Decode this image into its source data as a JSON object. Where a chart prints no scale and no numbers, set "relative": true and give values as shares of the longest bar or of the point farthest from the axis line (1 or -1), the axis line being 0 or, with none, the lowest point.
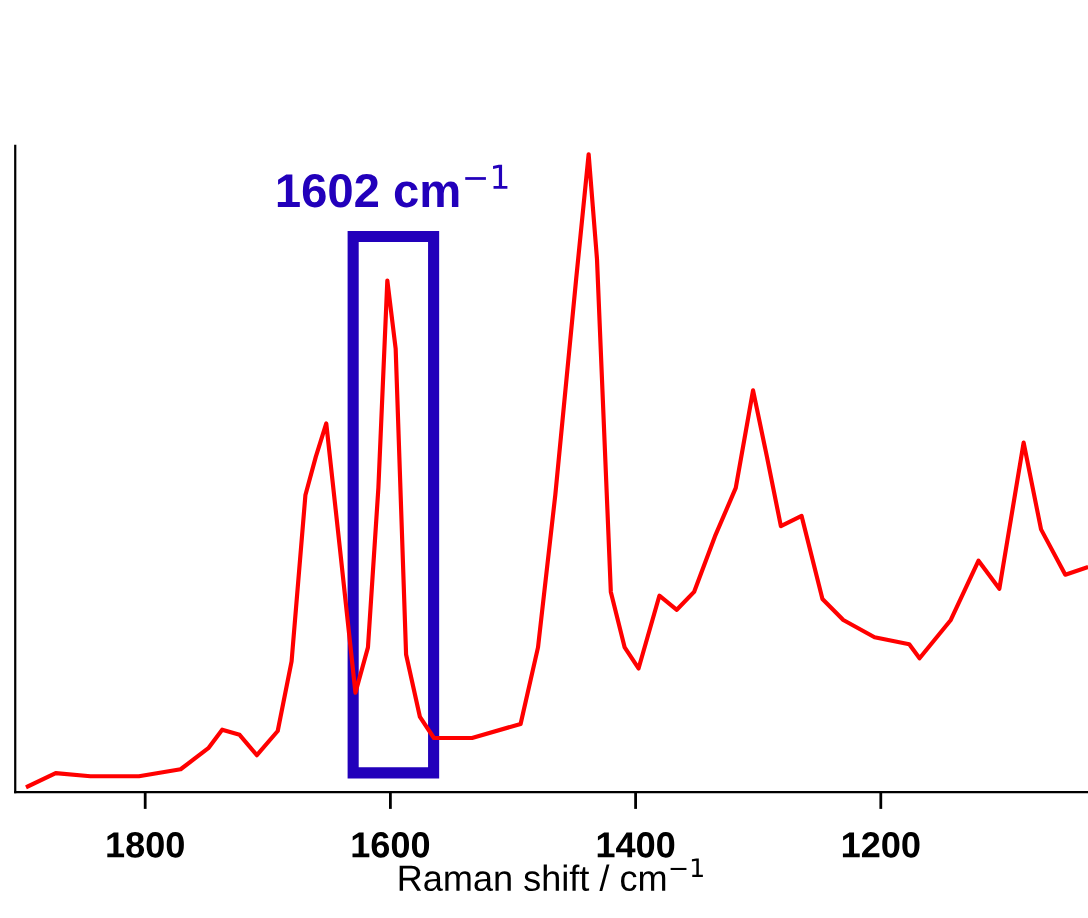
{
  "chart_data": {
    "type": "line",
    "relative": true,
    "xlabel": "Raman shift / cm$^{−1}$",
    "xlim": [
      1906,
      1031
    ],
    "xticks": [
      1800,
      1600,
      1400,
      1200
    ],
    "x": [
      1895.7,
      1873.0,
      1844.7,
      1805.1,
      1771.1,
      1748.5,
      1737.2,
      1723.0,
      1708.9,
      1691.9,
      1680.6,
      1669.3,
      1660.8,
      1652.3,
      1641.0,
      1628.5,
      1618.3,
      1609.8,
      1602.5,
      1595.7,
      1587.2,
      1575.9,
      1564.5,
      1533.4,
      1493.8,
      1479.6,
      1465.5,
      1448.5,
      1438.3,
      1431.5,
      1420.2,
      1408.9,
      1397.6,
      1380.6,
      1366.4,
      1352.3,
      1335.3,
      1318.3,
      1304.2,
      1292.9,
      1281.5,
      1264.6,
      1247.6,
      1230.6,
      1205.1,
      1176.8,
      1168.4,
      1142.9,
      1120.3,
      1103.3,
      1083.5,
      1069.3,
      1049.5,
      1032.5
    ],
    "series": [
      {
        "color": "#ff0000",
        "values": [
          0.009,
          0.03,
          0.025,
          0.025,
          0.036,
          0.069,
          0.098,
          0.09,
          0.058,
          0.096,
          0.205,
          0.466,
          0.526,
          0.578,
          0.379,
          0.156,
          0.227,
          0.477,
          0.802,
          0.695,
          0.216,
          0.118,
          0.085,
          0.085,
          0.107,
          0.227,
          0.466,
          0.804,
          1,
          0.836,
          0.314,
          0.227,
          0.194,
          0.308,
          0.286,
          0.314,
          0.401,
          0.477,
          0.63,
          0.526,
          0.417,
          0.433,
          0.303,
          0.27,
          0.243,
          0.232,
          0.21,
          0.27,
          0.363,
          0.319,
          0.548,
          0.412,
          0.341,
          0.352
        ]
      }
    ],
    "annotations": [
      "1602 cm$^{−1}$"
    ],
    "grid": false,
    "legend": false,
    "marker": "none",
    "line_style": "solid"
  }
}
